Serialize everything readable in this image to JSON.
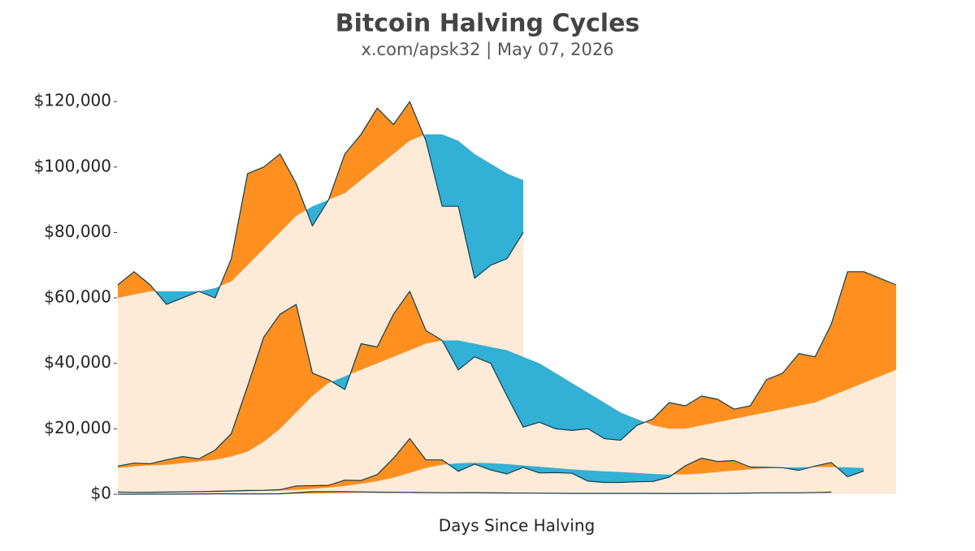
{
  "chart_data": {
    "type": "band-line",
    "title": "Bitcoin Halving Cycles",
    "subtitle": "x.com/apsk32 | May 07, 2026",
    "x_label": "Days Since Halving",
    "xlim": [
      0,
      1440
    ],
    "ylim": [
      0,
      125000
    ],
    "yticks": [
      {
        "value": 0,
        "label": "$0"
      },
      {
        "value": 20000,
        "label": "$20,000"
      },
      {
        "value": 40000,
        "label": "$40,000"
      },
      {
        "value": 60000,
        "label": "$60,000"
      },
      {
        "value": 80000,
        "label": "$80,000"
      },
      {
        "value": 100000,
        "label": "$100,000"
      },
      {
        "value": 120000,
        "label": "$120,000"
      }
    ],
    "up_color": "#ff9020",
    "down_color": "#32b0d6",
    "base_color": "#fdebd7",
    "line_color": "#0f3d52",
    "series": [
      {
        "x": [
          0,
          60,
          120,
          180,
          240,
          300,
          360,
          420,
          480,
          540,
          600,
          660,
          720,
          780,
          840,
          900,
          960,
          1020,
          1080,
          1140,
          1200,
          1260,
          1320
        ],
        "values": [
          12,
          13,
          35,
          120,
          110,
          125,
          800,
          800,
          620,
          580,
          450,
          470,
          380,
          320,
          250,
          240,
          240,
          230,
          240,
          280,
          430,
          420,
          650
        ],
        "ma": [
          10,
          12,
          20,
          50,
          80,
          100,
          200,
          400,
          550,
          600,
          580,
          520,
          450,
          380,
          320,
          280,
          260,
          250,
          260,
          290,
          340,
          380,
          420
        ]
      },
      {
        "x": [
          0,
          30,
          60,
          90,
          120,
          150,
          180,
          210,
          240,
          270,
          300,
          330,
          360,
          390,
          420,
          450,
          480,
          510,
          540,
          570,
          600,
          630,
          660,
          690,
          720,
          750,
          780,
          810,
          840,
          870,
          900,
          930,
          960,
          990,
          1020,
          1050,
          1080,
          1110,
          1140,
          1170,
          1200,
          1230,
          1260,
          1290,
          1320,
          1350,
          1380
        ],
        "values": [
          650,
          580,
          600,
          640,
          730,
          760,
          900,
          1000,
          1150,
          1200,
          1400,
          2500,
          2600,
          2700,
          4300,
          4200,
          6000,
          11000,
          17000,
          10500,
          10500,
          7000,
          9200,
          7400,
          6200,
          8200,
          6500,
          6600,
          6400,
          4000,
          3600,
          3600,
          3800,
          3900,
          5200,
          8700,
          11000,
          10000,
          10300,
          8300,
          8200,
          8100,
          7300,
          8600,
          9700,
          5300,
          7100
        ],
        "ma": [
          500,
          550,
          580,
          600,
          620,
          650,
          700,
          800,
          900,
          1000,
          1100,
          1300,
          1600,
          2000,
          2500,
          3200,
          4000,
          5000,
          6500,
          8000,
          9000,
          9500,
          9600,
          9500,
          9200,
          8800,
          8400,
          8000,
          7600,
          7300,
          7000,
          6800,
          6500,
          6200,
          6000,
          6000,
          6300,
          6800,
          7200,
          7600,
          7900,
          8100,
          8200,
          8300,
          8300,
          8200,
          8000
        ]
      },
      {
        "x": [
          0,
          30,
          60,
          90,
          120,
          150,
          180,
          210,
          240,
          270,
          300,
          330,
          360,
          390,
          420,
          450,
          480,
          510,
          540,
          570,
          600,
          630,
          660,
          690,
          720,
          750,
          780,
          810,
          840,
          870,
          900,
          930,
          960,
          990,
          1020,
          1050,
          1080,
          1110,
          1140,
          1170,
          1200,
          1230,
          1260,
          1290,
          1320,
          1350,
          1380,
          1410,
          1440
        ],
        "values": [
          8600,
          9500,
          9300,
          10500,
          11500,
          10800,
          13500,
          18500,
          33000,
          48000,
          55000,
          58000,
          37000,
          35000,
          32000,
          46000,
          45000,
          55000,
          62000,
          50000,
          47000,
          38000,
          42000,
          40000,
          30000,
          20500,
          22000,
          20000,
          19500,
          20000,
          17000,
          16500,
          21000,
          23000,
          28000,
          27000,
          30000,
          29000,
          26000,
          27000,
          35000,
          37000,
          43000,
          42000,
          52000,
          68000,
          68000,
          66000,
          64000
        ],
        "ma": [
          8000,
          8500,
          8800,
          9000,
          9500,
          10000,
          10500,
          11500,
          13000,
          16000,
          20000,
          25000,
          30000,
          34000,
          36000,
          38000,
          40000,
          42000,
          44000,
          46000,
          47000,
          47000,
          46000,
          45000,
          44000,
          42000,
          40000,
          37000,
          34000,
          31000,
          28000,
          25000,
          23000,
          21000,
          20000,
          20000,
          21000,
          22000,
          23000,
          24000,
          25000,
          26000,
          27000,
          28000,
          30000,
          32000,
          34000,
          36000,
          38000
        ]
      },
      {
        "x": [
          0,
          30,
          60,
          90,
          120,
          150,
          180,
          210,
          240,
          270,
          300,
          330,
          360,
          390,
          420,
          450,
          480,
          510,
          540,
          570,
          600,
          630,
          660,
          690,
          720,
          750
        ],
        "values": [
          64000,
          68000,
          64000,
          58000,
          60000,
          62000,
          60000,
          72000,
          98000,
          100000,
          104000,
          95000,
          82000,
          90000,
          104000,
          110000,
          118000,
          113000,
          120000,
          108000,
          88000,
          88000,
          66000,
          70000,
          72000,
          80000
        ],
        "ma": [
          60000,
          61000,
          62000,
          62000,
          62000,
          62000,
          63000,
          65000,
          70000,
          75000,
          80000,
          85000,
          88000,
          90000,
          92000,
          96000,
          100000,
          104000,
          108000,
          110000,
          110000,
          108000,
          104000,
          101000,
          98000,
          96000
        ]
      }
    ]
  }
}
